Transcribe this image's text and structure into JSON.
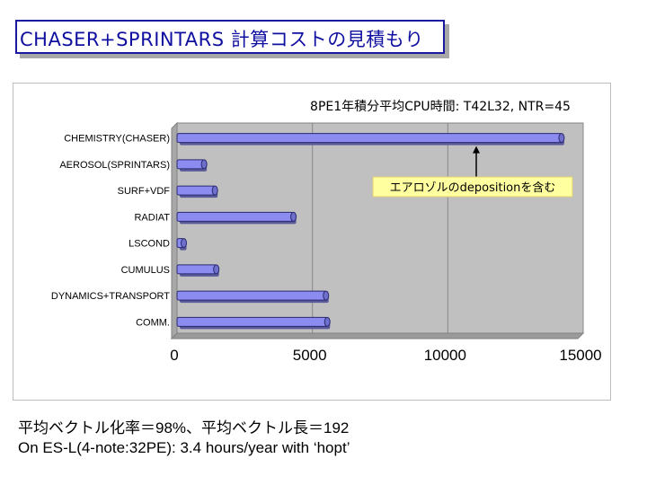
{
  "slide": {
    "title": "CHASER+SPRINTARS 計算コストの見積もり",
    "footer_line1": "平均ベクトル化率＝98%、平均ベクトル長＝192",
    "footer_line2": "On ES-L(4-note:32PE): 3.4 hours/year with ‘hopt’"
  },
  "chart_data": {
    "type": "bar",
    "orientation": "horizontal",
    "title": "8PE1年積分平均CPU時間: T42L32, NTR=45",
    "categories": [
      "CHEMISTRY(CHASER)",
      "AEROSOL(SPRINTARS)",
      "SURF+VDF",
      "RADIAT",
      "LSCOND",
      "CUMULUS",
      "DYNAMICS+TRANSPORT",
      "COMM."
    ],
    "values": [
      14200,
      1000,
      1400,
      4300,
      250,
      1450,
      5500,
      5550
    ],
    "xlim": [
      0,
      15000
    ],
    "xticks": [
      "0",
      "5000",
      "10000",
      "15000"
    ],
    "xlabel": "",
    "ylabel": "",
    "grid": true,
    "annotation": {
      "text": "エアロゾルのdepositionを含む",
      "target_category": "CHEMISTRY(CHASER)"
    },
    "colors": {
      "bar": "#8b8bf0",
      "bar_edge": "#2a2a70",
      "plot_bg": "#c0c0c0",
      "annotation_bg": "#ffffa0"
    }
  }
}
